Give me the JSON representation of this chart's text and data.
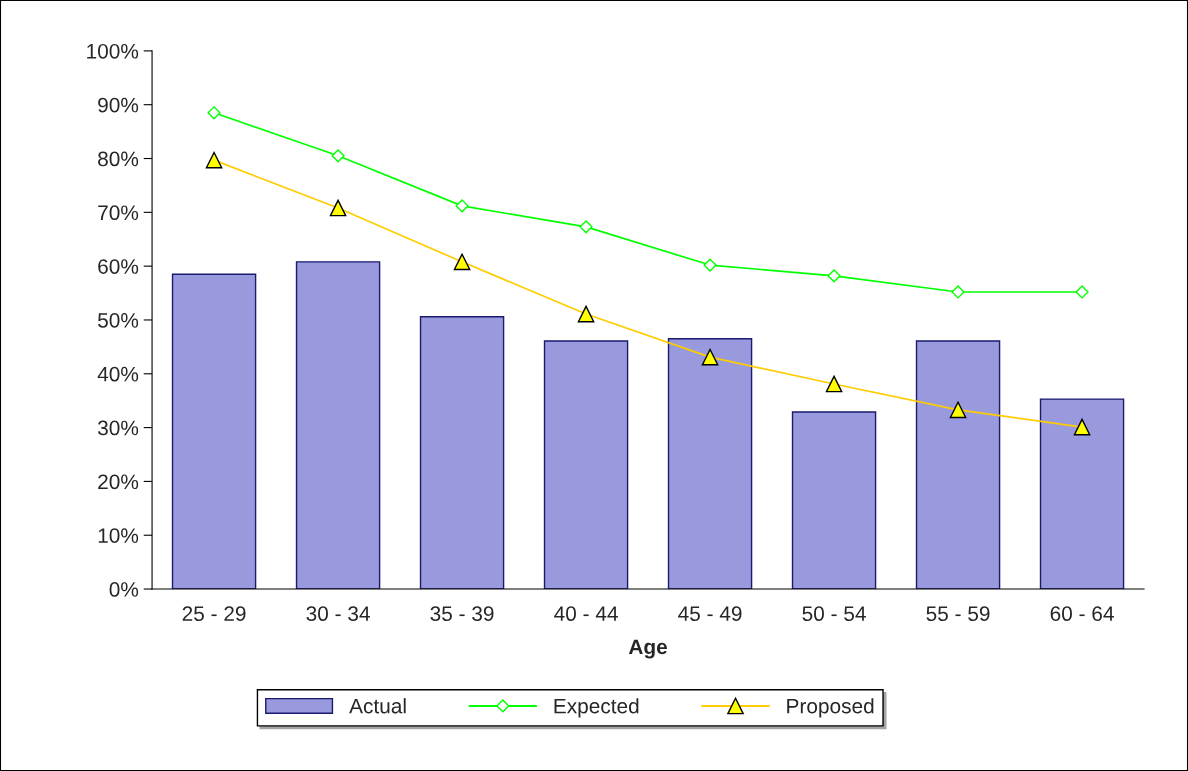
{
  "chart_data": {
    "type": "bar",
    "xlabel": "Age",
    "categories": [
      "25 - 29",
      "30 - 34",
      "35 - 39",
      "40 - 44",
      "45 - 49",
      "50 - 54",
      "55 - 59",
      "60 - 64"
    ],
    "series": [
      {
        "name": "Actual",
        "color": "#9999dd",
        "values": [
          58.5,
          60.8,
          50.6,
          46.1,
          46.5,
          32.9,
          46.1,
          35.3
        ]
      },
      {
        "name": "Expected",
        "type": "line",
        "color": "#00ff00",
        "marker": "diamond",
        "values": [
          88.5,
          80.5,
          71.2,
          67.3,
          60.2,
          58.2,
          55.2,
          55.2
        ]
      },
      {
        "name": "Proposed",
        "type": "line",
        "color": "#ffcc00",
        "marker": "triangle",
        "values": [
          79.7,
          70.8,
          60.8,
          51.1,
          43.1,
          38.1,
          33.3,
          30.1
        ]
      }
    ],
    "ylim": [
      0,
      100
    ],
    "yticks": [
      {
        "value": 0,
        "label": "0%"
      },
      {
        "value": 10,
        "label": "10%"
      },
      {
        "value": 20,
        "label": "20%"
      },
      {
        "value": 30,
        "label": "30%"
      },
      {
        "value": 40,
        "label": "40%"
      },
      {
        "value": 50,
        "label": "50%"
      },
      {
        "value": 60,
        "label": "60%"
      },
      {
        "value": 70,
        "label": "70%"
      },
      {
        "value": 80,
        "label": "80%"
      },
      {
        "value": 90,
        "label": "90%"
      },
      {
        "value": 100,
        "label": "100%"
      }
    ],
    "grid": false,
    "legend": "bottom"
  }
}
